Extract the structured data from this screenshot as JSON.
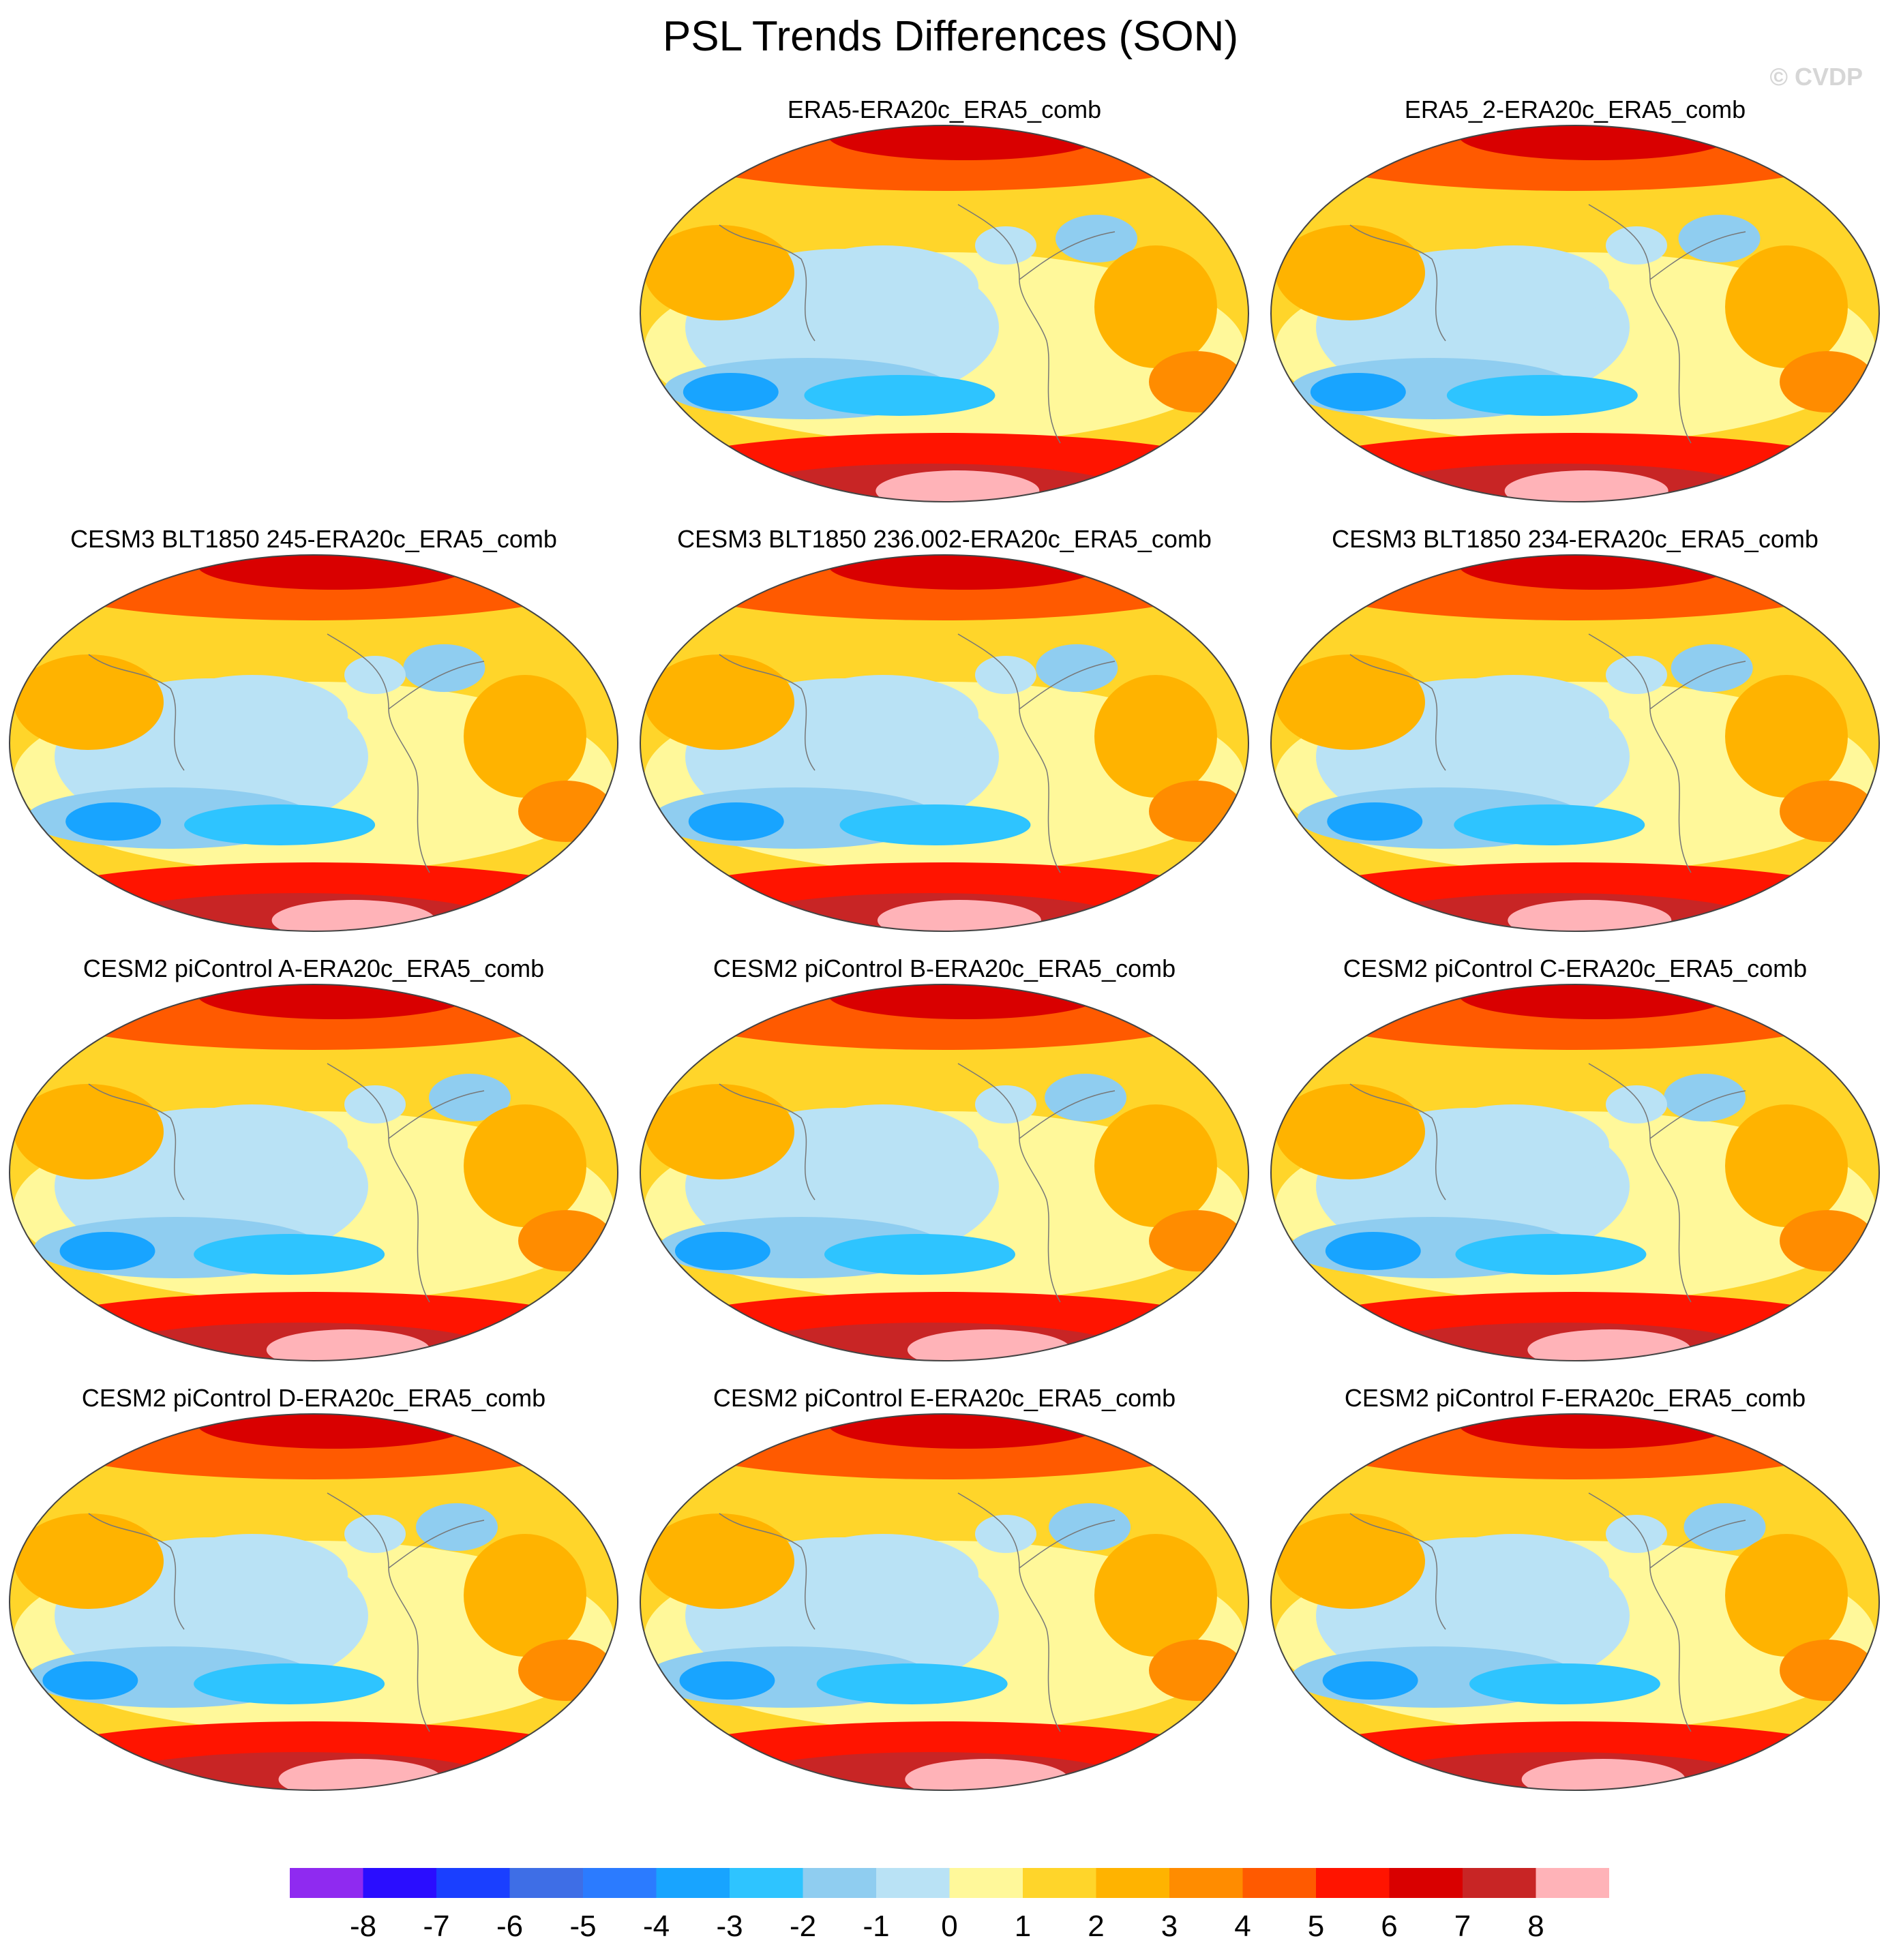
{
  "title": "PSL Trends Differences (SON)",
  "copyright": "© CVDP",
  "panels": [
    {
      "label": "ERA5-ERA20c_ERA5_comb",
      "seed": 1
    },
    {
      "label": "ERA5_2-ERA20c_ERA5_comb",
      "seed": 2
    },
    {
      "label": "CESM3 BLT1850 245-ERA20c_ERA5_comb",
      "seed": 3
    },
    {
      "label": "CESM3 BLT1850 236.002-ERA20c_ERA5_comb",
      "seed": 4
    },
    {
      "label": "CESM3 BLT1850 234-ERA20c_ERA5_comb",
      "seed": 5
    },
    {
      "label": "CESM2 piControl A-ERA20c_ERA5_comb",
      "seed": 6
    },
    {
      "label": "CESM2 piControl B-ERA20c_ERA5_comb",
      "seed": 7
    },
    {
      "label": "CESM2 piControl C-ERA20c_ERA5_comb",
      "seed": 8
    },
    {
      "label": "CESM2 piControl D-ERA20c_ERA5_comb",
      "seed": 9
    },
    {
      "label": "CESM2 piControl E-ERA20c_ERA5_comb",
      "seed": 10
    },
    {
      "label": "CESM2 piControl F-ERA20c_ERA5_comb",
      "seed": 11
    }
  ],
  "colorbar": {
    "levels": [
      "-8",
      "-7",
      "-6",
      "-5",
      "-4",
      "-3",
      "-2",
      "-1",
      "0",
      "1",
      "2",
      "3",
      "4",
      "5",
      "6",
      "7",
      "8"
    ],
    "colors": [
      "#8f2af0",
      "#2a0dff",
      "#1a3fff",
      "#3e6ee6",
      "#2b7bff",
      "#18a4ff",
      "#2ec4ff",
      "#8fcdf0",
      "#b9e2f5",
      "#fff89a",
      "#ffd52a",
      "#ffb300",
      "#ff8c00",
      "#ff5a00",
      "#ff1400",
      "#d90000",
      "#c82525",
      "#ffb3b8"
    ]
  }
}
